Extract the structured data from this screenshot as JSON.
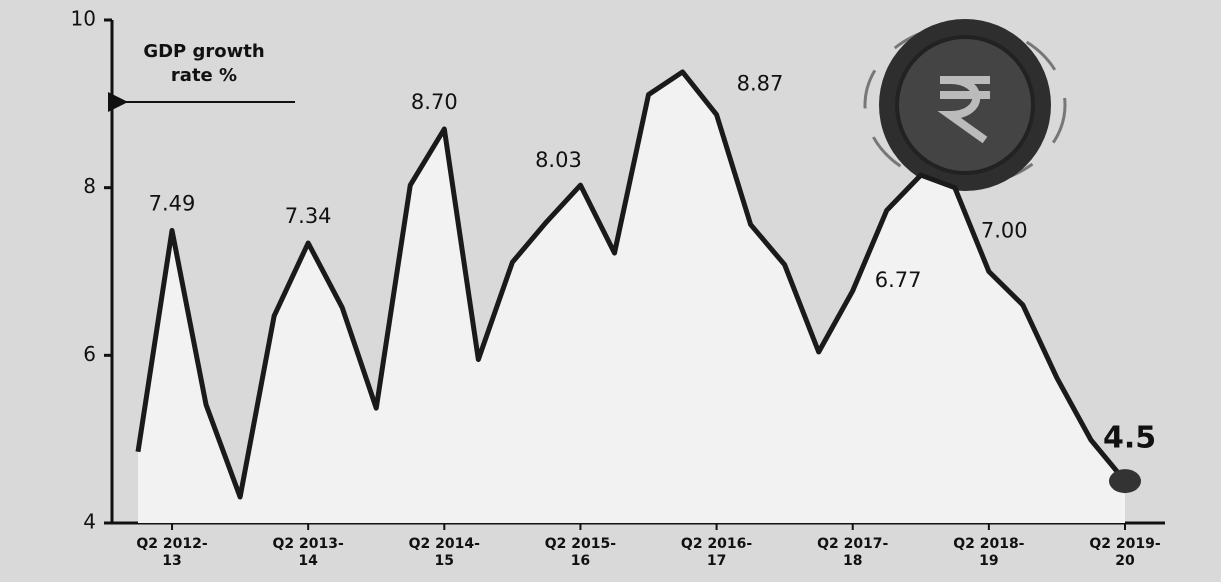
{
  "chart_data": {
    "type": "line",
    "annotation": "GDP growth rate %",
    "categories": [
      null,
      "Q2 2012-13",
      null,
      null,
      null,
      "Q2 2013-14",
      null,
      null,
      null,
      "Q2 2014-15",
      null,
      null,
      null,
      "Q2 2015-16",
      null,
      null,
      null,
      "Q2 2016-17",
      null,
      null,
      null,
      "Q2 2017-18",
      null,
      null,
      null,
      "Q2 2018-19",
      null,
      null,
      null,
      "Q2 2019-20"
    ],
    "values": [
      4.85,
      7.49,
      5.41,
      4.31,
      6.47,
      7.34,
      6.57,
      5.37,
      8.03,
      8.7,
      5.95,
      7.11,
      7.59,
      8.03,
      7.22,
      9.11,
      9.38,
      8.87,
      7.56,
      7.08,
      6.04,
      6.77,
      7.73,
      8.15,
      8.0,
      7.0,
      6.6,
      5.73,
      4.99,
      4.5
    ],
    "value_labels": [
      null,
      "7.49",
      null,
      null,
      null,
      "7.34",
      null,
      null,
      null,
      "8.70",
      null,
      null,
      null,
      "8.03",
      null,
      null,
      null,
      "8.87",
      null,
      null,
      null,
      "6.77",
      null,
      null,
      null,
      "7.00",
      null,
      null,
      null,
      "4.5"
    ],
    "color": "#1a1a1a",
    "ylim": [
      4,
      10
    ],
    "yticks": [
      4,
      6,
      8,
      10
    ]
  }
}
